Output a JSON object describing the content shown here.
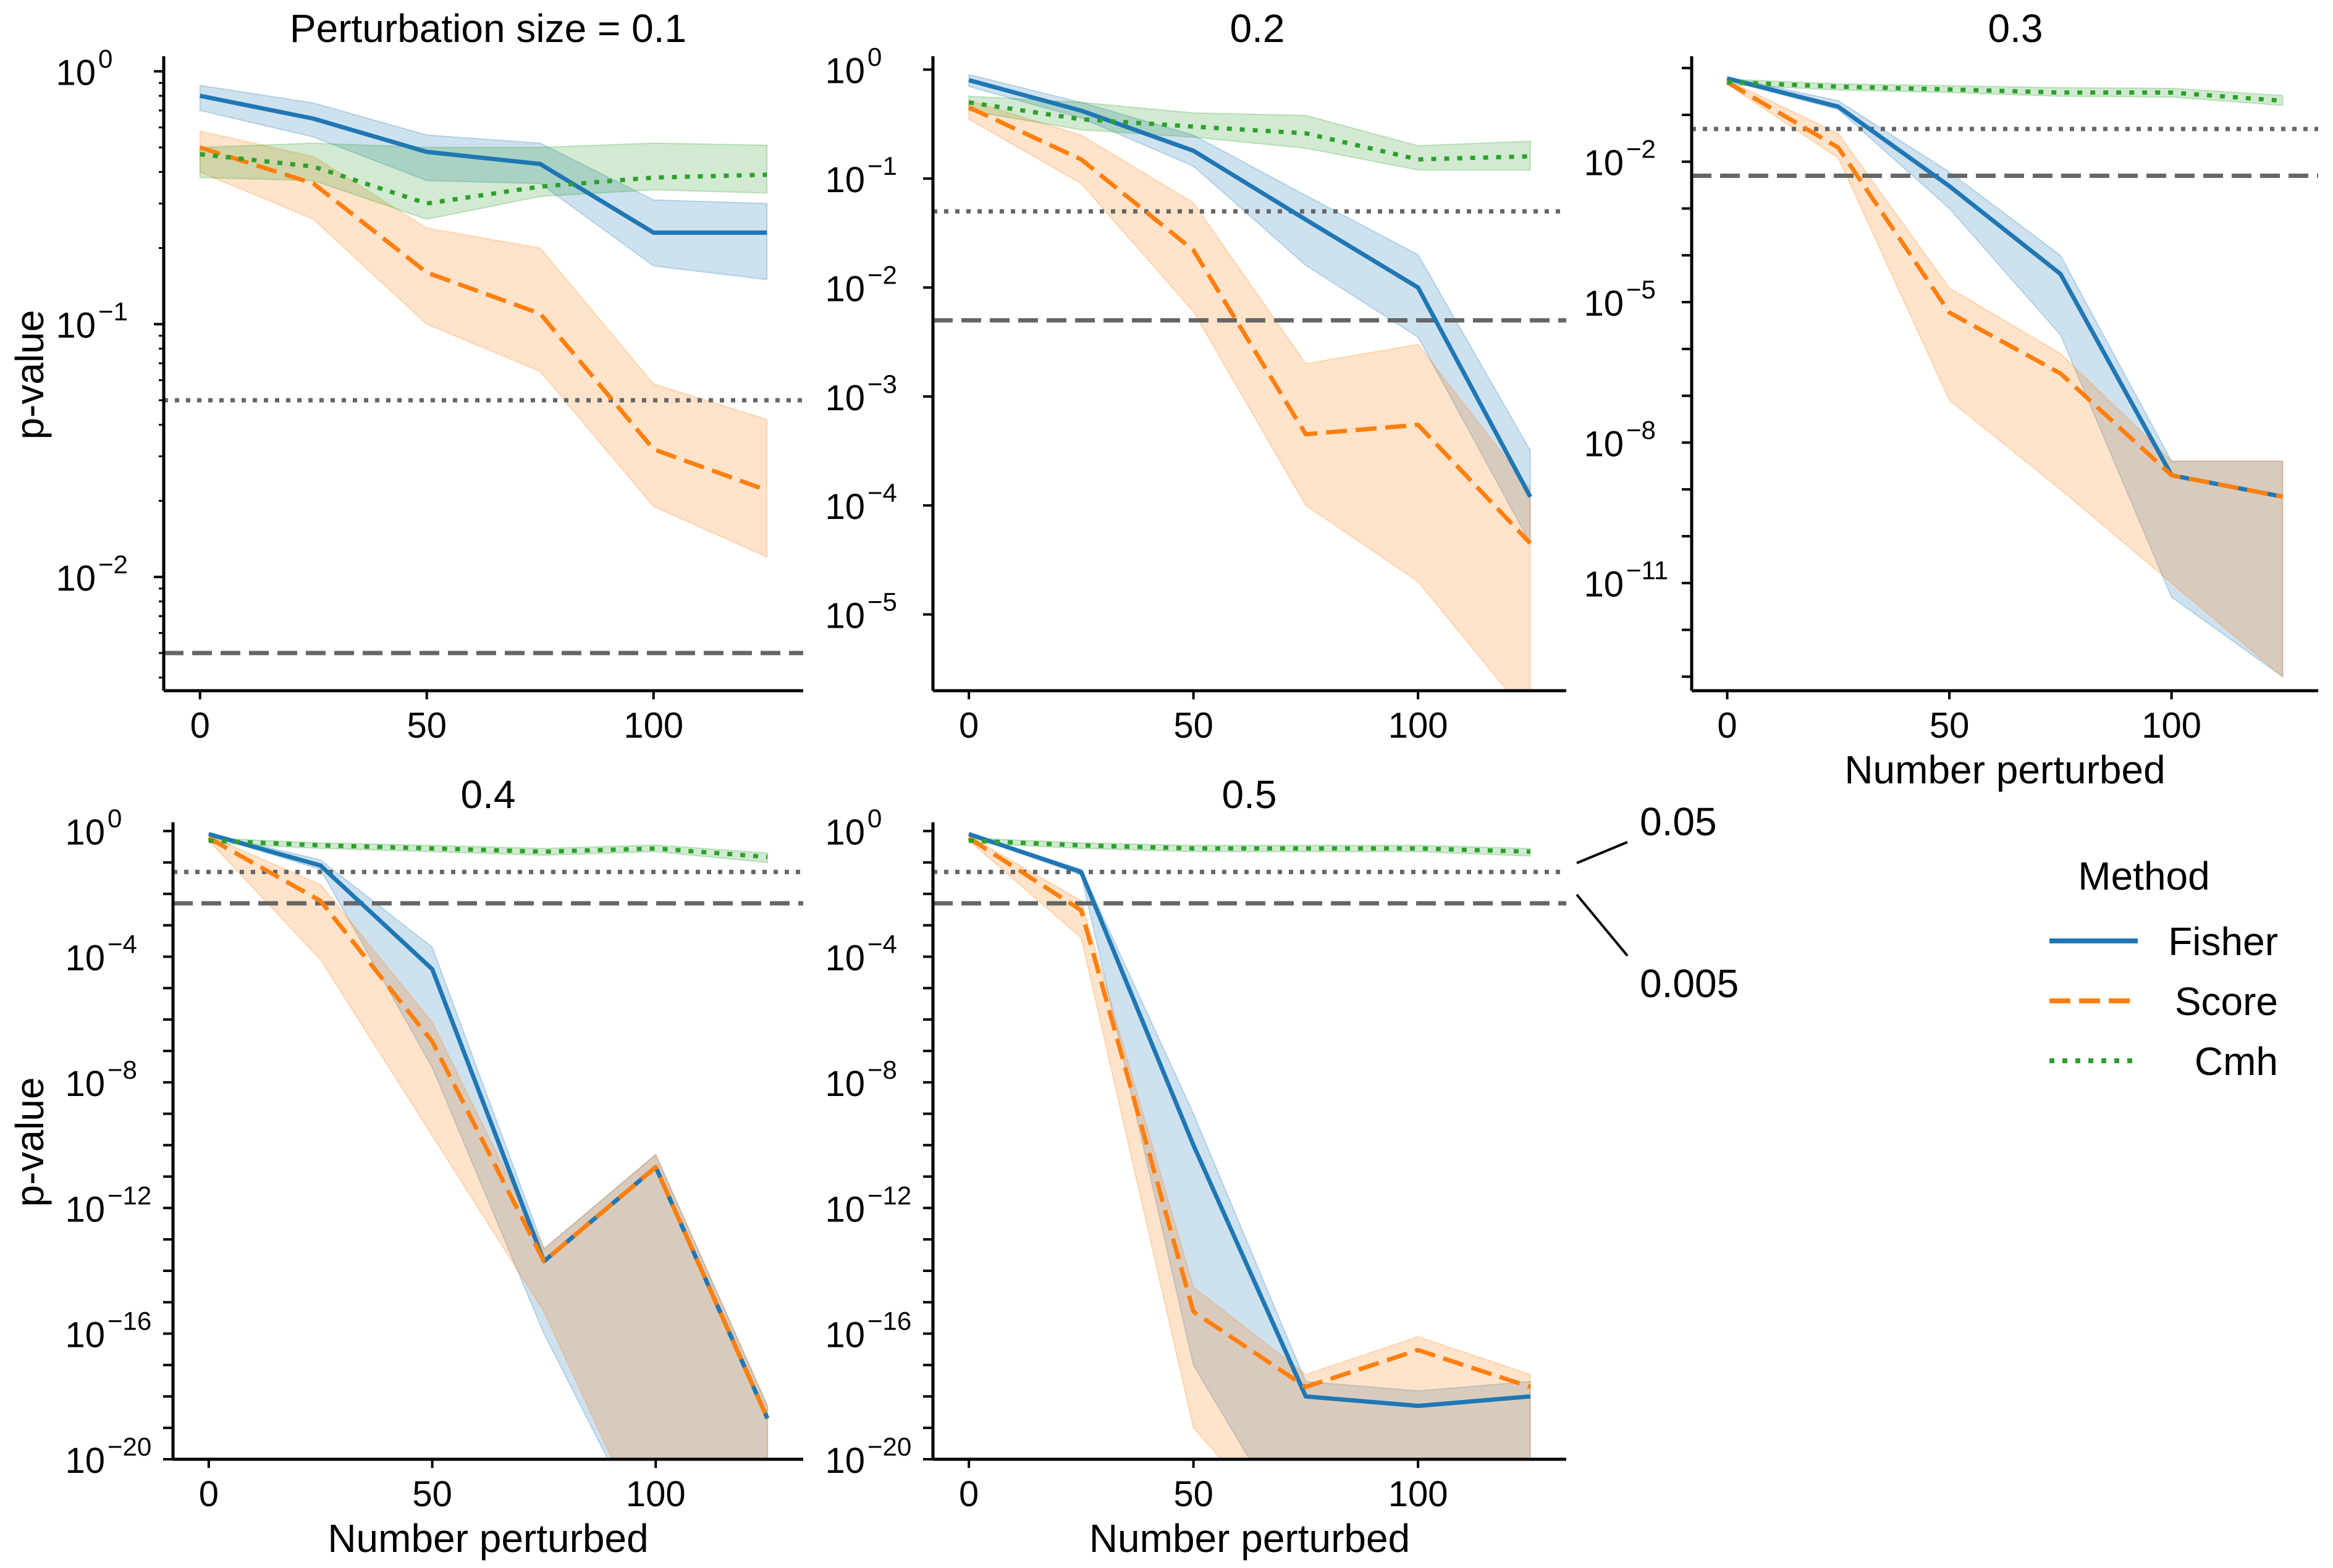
{
  "colors": {
    "Fisher": "#1f77b4",
    "Score": "#ff7f0e",
    "Cmh": "#2ca02c",
    "threshold": "#666666"
  },
  "chart_data": [
    {
      "type": "line",
      "title": "Perturbation size = 0.1",
      "xlabel": "",
      "ylabel": "p-value",
      "yscale": "log",
      "x": [
        0,
        25,
        50,
        75,
        100,
        125
      ],
      "xticks": [
        0,
        50,
        100
      ],
      "ylim_exp": [
        -2.45,
        0.05
      ],
      "yticks_exp": [
        -2,
        -1,
        0
      ],
      "series": [
        {
          "name": "Fisher",
          "values": [
            0.8,
            0.65,
            0.48,
            0.43,
            0.23,
            0.23
          ],
          "lower": [
            0.7,
            0.55,
            0.37,
            0.36,
            0.17,
            0.15
          ],
          "upper": [
            0.88,
            0.75,
            0.56,
            0.52,
            0.31,
            0.3
          ]
        },
        {
          "name": "Score",
          "values": [
            0.5,
            0.36,
            0.16,
            0.11,
            0.032,
            0.022
          ],
          "lower": [
            0.4,
            0.26,
            0.1,
            0.065,
            0.019,
            0.012
          ],
          "upper": [
            0.58,
            0.46,
            0.24,
            0.2,
            0.058,
            0.042
          ]
        },
        {
          "name": "Cmh",
          "values": [
            0.47,
            0.42,
            0.3,
            0.35,
            0.38,
            0.39
          ],
          "lower": [
            0.38,
            0.37,
            0.26,
            0.32,
            0.34,
            0.33
          ],
          "upper": [
            0.5,
            0.52,
            0.5,
            0.5,
            0.52,
            0.51
          ]
        }
      ],
      "hlines": [
        0.05,
        0.005
      ]
    },
    {
      "type": "line",
      "title": "0.2",
      "xlabel": "",
      "ylabel": "",
      "yscale": "log",
      "x": [
        0,
        25,
        50,
        75,
        100,
        125
      ],
      "xticks": [
        0,
        50,
        100
      ],
      "ylim_exp": [
        -5.7,
        0.1
      ],
      "yticks_exp": [
        -5,
        -4,
        -3,
        -2,
        -1,
        0
      ],
      "series": [
        {
          "name": "Fisher",
          "values": [
            0.8,
            0.42,
            0.18,
            0.042,
            0.01,
            0.00012
          ],
          "lower": [
            0.7,
            0.36,
            0.13,
            0.016,
            0.0035,
            4.5e-05
          ],
          "upper": [
            0.9,
            0.5,
            0.25,
            0.07,
            0.02,
            0.00032
          ]
        },
        {
          "name": "Score",
          "values": [
            0.45,
            0.15,
            0.022,
            0.00045,
            0.00055,
            4.5e-05
          ],
          "lower": [
            0.35,
            0.09,
            0.006,
            0.0001,
            2e-05,
            1.1e-06
          ],
          "upper": [
            0.52,
            0.25,
            0.06,
            0.002,
            0.003,
            0.00014
          ]
        },
        {
          "name": "Cmh",
          "values": [
            0.5,
            0.35,
            0.3,
            0.26,
            0.15,
            0.16
          ],
          "lower": [
            0.42,
            0.28,
            0.24,
            0.19,
            0.12,
            0.12
          ],
          "upper": [
            0.57,
            0.5,
            0.4,
            0.38,
            0.2,
            0.22
          ]
        }
      ],
      "hlines": [
        0.05,
        0.005
      ]
    },
    {
      "type": "line",
      "title": "0.3",
      "xlabel": "Number perturbed",
      "ylabel": "",
      "yscale": "log",
      "x": [
        0,
        25,
        50,
        75,
        100,
        125
      ],
      "xticks": [
        0,
        50,
        100
      ],
      "ylim_exp": [
        -13.3,
        0.2
      ],
      "yticks_exp": [
        -11,
        -8,
        -5,
        -2
      ],
      "series": [
        {
          "name": "Fisher",
          "values": [
            0.6,
            0.15,
            0.003,
            4e-05,
            2e-09,
            7e-10
          ],
          "lower": [
            0.55,
            0.13,
            0.001,
            2e-06,
            5e-12,
            1e-13
          ],
          "upper": [
            0.65,
            0.2,
            0.006,
            0.0001,
            4e-09,
            4e-09
          ]
        },
        {
          "name": "Score",
          "values": [
            0.5,
            0.02,
            6e-06,
            3e-07,
            2e-09,
            7e-10
          ],
          "lower": [
            0.45,
            0.012,
            8e-08,
            1e-09,
            1e-11,
            1e-13
          ],
          "upper": [
            0.55,
            0.04,
            2e-05,
            8e-07,
            4e-09,
            4e-09
          ]
        },
        {
          "name": "Cmh",
          "values": [
            0.5,
            0.4,
            0.35,
            0.3,
            0.3,
            0.2
          ],
          "lower": [
            0.44,
            0.34,
            0.3,
            0.25,
            0.24,
            0.16
          ],
          "upper": [
            0.58,
            0.46,
            0.42,
            0.38,
            0.37,
            0.26
          ]
        }
      ],
      "hlines": [
        0.05,
        0.005
      ]
    },
    {
      "type": "line",
      "title": "0.4",
      "xlabel": "Number perturbed",
      "ylabel": "p-value",
      "yscale": "log",
      "x": [
        0,
        25,
        50,
        75,
        100,
        125
      ],
      "xticks": [
        0,
        50,
        100
      ],
      "ylim_exp": [
        -20,
        0.2
      ],
      "yticks_exp": [
        -20,
        -16,
        -12,
        -8,
        -4,
        0
      ],
      "series": [
        {
          "name": "Fisher",
          "values": [
            0.8,
            0.08,
            4e-05,
            2e-14,
            2e-11,
            2e-19
          ],
          "lower": [
            0.75,
            0.06,
            3e-08,
            1e-16,
            1e-23,
            1e-23
          ],
          "upper": [
            0.85,
            0.12,
            0.0002,
            5e-14,
            5e-11,
            5e-19
          ]
        },
        {
          "name": "Score",
          "values": [
            0.6,
            0.006,
            2e-07,
            2e-14,
            2e-11,
            2e-19
          ],
          "lower": [
            0.5,
            8e-05,
            2e-10,
            5e-16,
            1e-23,
            1e-23
          ],
          "upper": [
            0.7,
            0.02,
            8e-07,
            5e-14,
            5e-11,
            5e-19
          ]
        },
        {
          "name": "Cmh",
          "values": [
            0.5,
            0.35,
            0.28,
            0.22,
            0.28,
            0.15
          ],
          "lower": [
            0.42,
            0.28,
            0.22,
            0.17,
            0.22,
            0.1
          ],
          "upper": [
            0.6,
            0.42,
            0.35,
            0.28,
            0.36,
            0.2
          ]
        }
      ],
      "hlines": [
        0.05,
        0.005
      ]
    },
    {
      "type": "line",
      "title": "0.5",
      "xlabel": "Number perturbed",
      "ylabel": "",
      "yscale": "log",
      "x": [
        0,
        25,
        50,
        75,
        100,
        125
      ],
      "xticks": [
        0,
        50,
        100
      ],
      "ylim_exp": [
        -20,
        0.2
      ],
      "yticks_exp": [
        -20,
        -16,
        -12,
        -8,
        -4,
        0
      ],
      "series": [
        {
          "name": "Fisher",
          "values": [
            0.8,
            0.05,
            1e-10,
            1e-18,
            5e-19,
            1e-18
          ],
          "lower": [
            0.75,
            0.04,
            1e-17,
            1e-23,
            1e-23,
            1e-23
          ],
          "upper": [
            0.85,
            0.06,
            1e-09,
            3e-18,
            1.5e-18,
            3e-18
          ]
        },
        {
          "name": "Score",
          "values": [
            0.6,
            0.003,
            5e-16,
            2e-18,
            3e-17,
            2e-18
          ],
          "lower": [
            0.5,
            0.0004,
            1e-19,
            1e-23,
            1e-23,
            1e-23
          ],
          "upper": [
            0.7,
            0.006,
            3e-15,
            5e-18,
            8e-17,
            5e-18
          ]
        },
        {
          "name": "Cmh",
          "values": [
            0.5,
            0.35,
            0.28,
            0.28,
            0.28,
            0.22
          ],
          "lower": [
            0.42,
            0.28,
            0.22,
            0.22,
            0.22,
            0.16
          ],
          "upper": [
            0.6,
            0.42,
            0.35,
            0.35,
            0.35,
            0.28
          ]
        }
      ],
      "hlines": [
        0.05,
        0.005
      ]
    }
  ],
  "threshold_labels": {
    "dotted": "0.05",
    "dashed": "0.005"
  },
  "legend": {
    "title": "Method",
    "placement": "right",
    "entries": [
      "Fisher",
      "Score",
      "Cmh"
    ]
  }
}
